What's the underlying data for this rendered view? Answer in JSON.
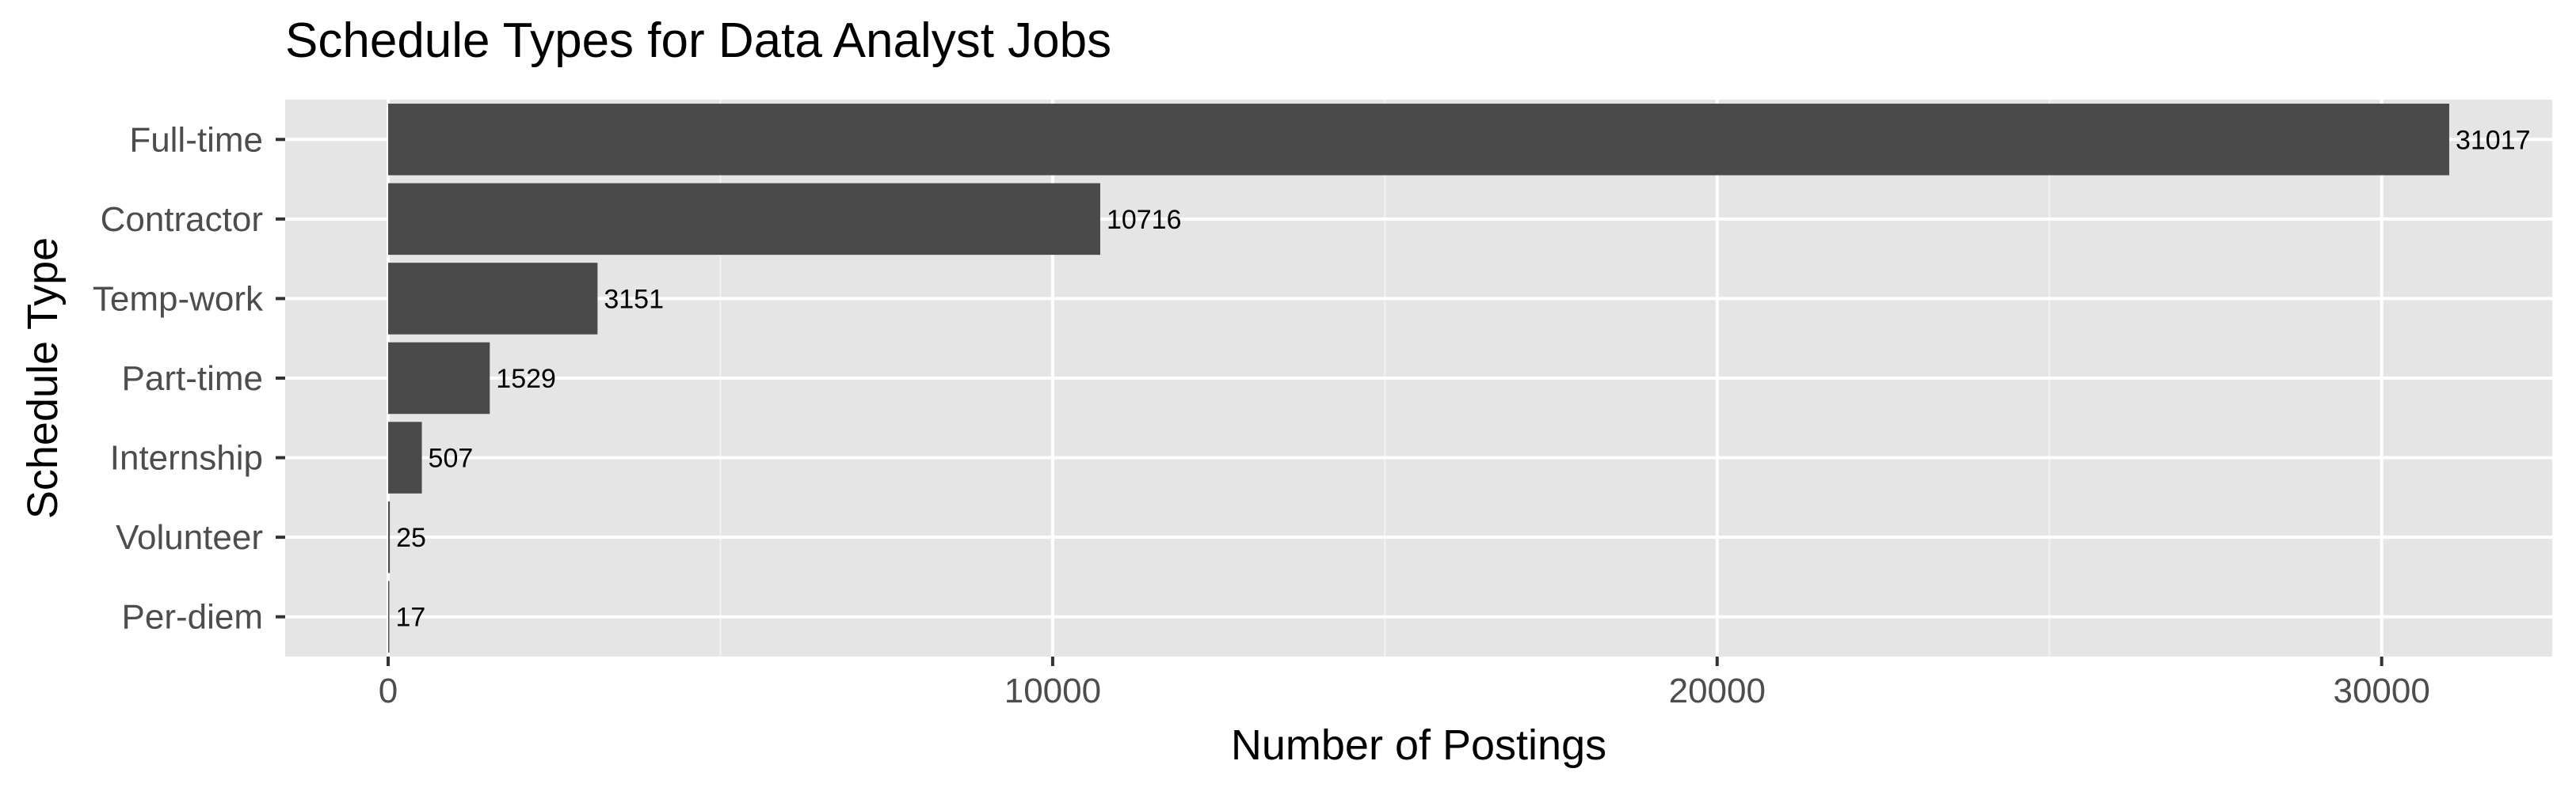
{
  "chart_data": {
    "type": "bar",
    "orientation": "horizontal",
    "title": "Schedule Types for Data Analyst Jobs",
    "xlabel": "Number of Postings",
    "ylabel": "Schedule Type",
    "categories": [
      "Full-time",
      "Contractor",
      "Temp-work",
      "Part-time",
      "Internship",
      "Volunteer",
      "Per-diem"
    ],
    "values": [
      31017,
      10716,
      3151,
      1529,
      507,
      25,
      17
    ],
    "data_labels": [
      "31017",
      "10716",
      "3151",
      "1529",
      "507",
      "25",
      "17"
    ],
    "xticks": [
      0,
      10000,
      20000,
      30000
    ],
    "xtick_labels": [
      "0",
      "10000",
      "20000",
      "30000"
    ],
    "xlim": [
      -1550,
      32567
    ],
    "grid": true,
    "legend": "none",
    "colors": {
      "bar": "#4a4a4a",
      "panel_background": "#e5e5e5",
      "grid_major": "#ffffff",
      "grid_minor": "#f2f2f2",
      "axis_text": "#4d4d4d",
      "title_text": "#000000"
    }
  }
}
